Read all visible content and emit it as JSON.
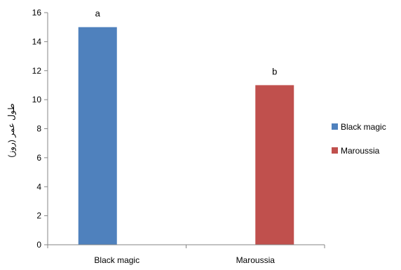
{
  "chart_data": {
    "type": "bar",
    "title": "",
    "xlabel": "",
    "ylabel": "طول عمر (روز)",
    "ylim": [
      0,
      16
    ],
    "yticks": [
      0,
      2,
      4,
      6,
      8,
      10,
      12,
      14,
      16
    ],
    "grid": false,
    "legend_position": "right",
    "categories": [
      "Black magic",
      "Maroussia"
    ],
    "series": [
      {
        "name": "Black magic",
        "color": "#4f81bd",
        "values": [
          15,
          null
        ],
        "data_labels": [
          "a",
          ""
        ]
      },
      {
        "name": "Maroussia",
        "color": "#c0504d",
        "values": [
          null,
          11
        ],
        "data_labels": [
          "",
          "b"
        ]
      }
    ]
  }
}
